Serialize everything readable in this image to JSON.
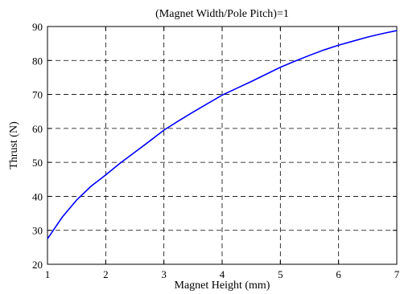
{
  "chart_data": {
    "type": "line",
    "title": "(Magnet Width/Pole Pitch)=1",
    "xlabel": "Magnet Height (mm)",
    "ylabel": "Thrust (N)",
    "xlim": [
      1,
      7
    ],
    "ylim": [
      20,
      90
    ],
    "xticks": [
      1,
      2,
      3,
      4,
      5,
      6,
      7
    ],
    "yticks": [
      20,
      30,
      40,
      50,
      60,
      70,
      80,
      90
    ],
    "grid": true,
    "grid_style": "dashed",
    "line_color": "#0000ff",
    "series": [
      {
        "x": [
          1,
          1.25,
          1.5,
          1.75,
          2,
          2.25,
          2.5,
          2.75,
          3,
          3.25,
          3.5,
          3.75,
          4,
          4.25,
          4.5,
          4.75,
          5,
          5.25,
          5.5,
          5.75,
          6,
          6.25,
          6.5,
          6.75,
          7
        ],
        "y": [
          27.5,
          33.8,
          38.9,
          43.0,
          46.3,
          49.8,
          53.0,
          56.2,
          59.5,
          62.2,
          64.8,
          67.3,
          69.8,
          71.8,
          73.8,
          75.9,
          78.0,
          79.8,
          81.5,
          83.1,
          84.5,
          85.7,
          86.9,
          87.9,
          88.8
        ]
      }
    ]
  }
}
